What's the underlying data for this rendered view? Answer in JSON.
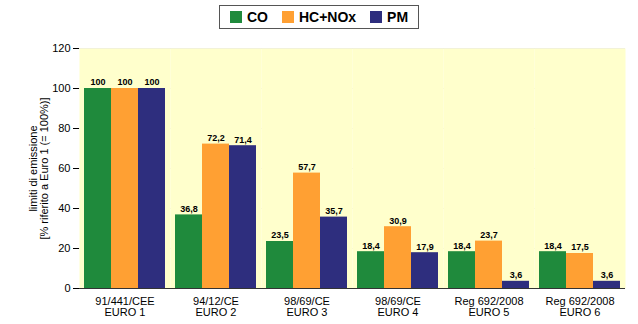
{
  "chart_data": {
    "type": "bar",
    "ylabel": "limiti di emissione\n[% riferito a Euro 1 (= 100%)]",
    "categories": [
      "91/441/CEE\nEURO 1",
      "94/12/CE\nEURO 2",
      "98/69/CE\nEURO 3",
      "98/69/CE\nEURO 4",
      "Reg 692/2008\nEURO 5",
      "Reg 692/2008\nEURO 6"
    ],
    "series": [
      {
        "name": "CO",
        "color": "#1f8a3c",
        "values": [
          100,
          36.8,
          23.5,
          18.4,
          18.4,
          18.4
        ],
        "value_labels": [
          "100",
          "36,8",
          "23,5",
          "18,4",
          "18,4",
          "18,4"
        ]
      },
      {
        "name": "HC+NOx",
        "color": "#ffa033",
        "values": [
          100,
          72.2,
          57.7,
          30.9,
          23.7,
          17.5
        ],
        "value_labels": [
          "100",
          "72,2",
          "57,7",
          "30,9",
          "23,7",
          "17,5"
        ]
      },
      {
        "name": "PM",
        "color": "#2e2e7e",
        "values": [
          100,
          71.4,
          35.7,
          17.9,
          3.6,
          3.6
        ],
        "value_labels": [
          "100",
          "71,4",
          "35,7",
          "17,9",
          "3,6",
          "3,6"
        ]
      }
    ],
    "ylim": [
      0,
      120
    ],
    "yticks": [
      0,
      20,
      40,
      60,
      80,
      100,
      120
    ],
    "grid": true,
    "legend": "top",
    "data_labels": true
  }
}
